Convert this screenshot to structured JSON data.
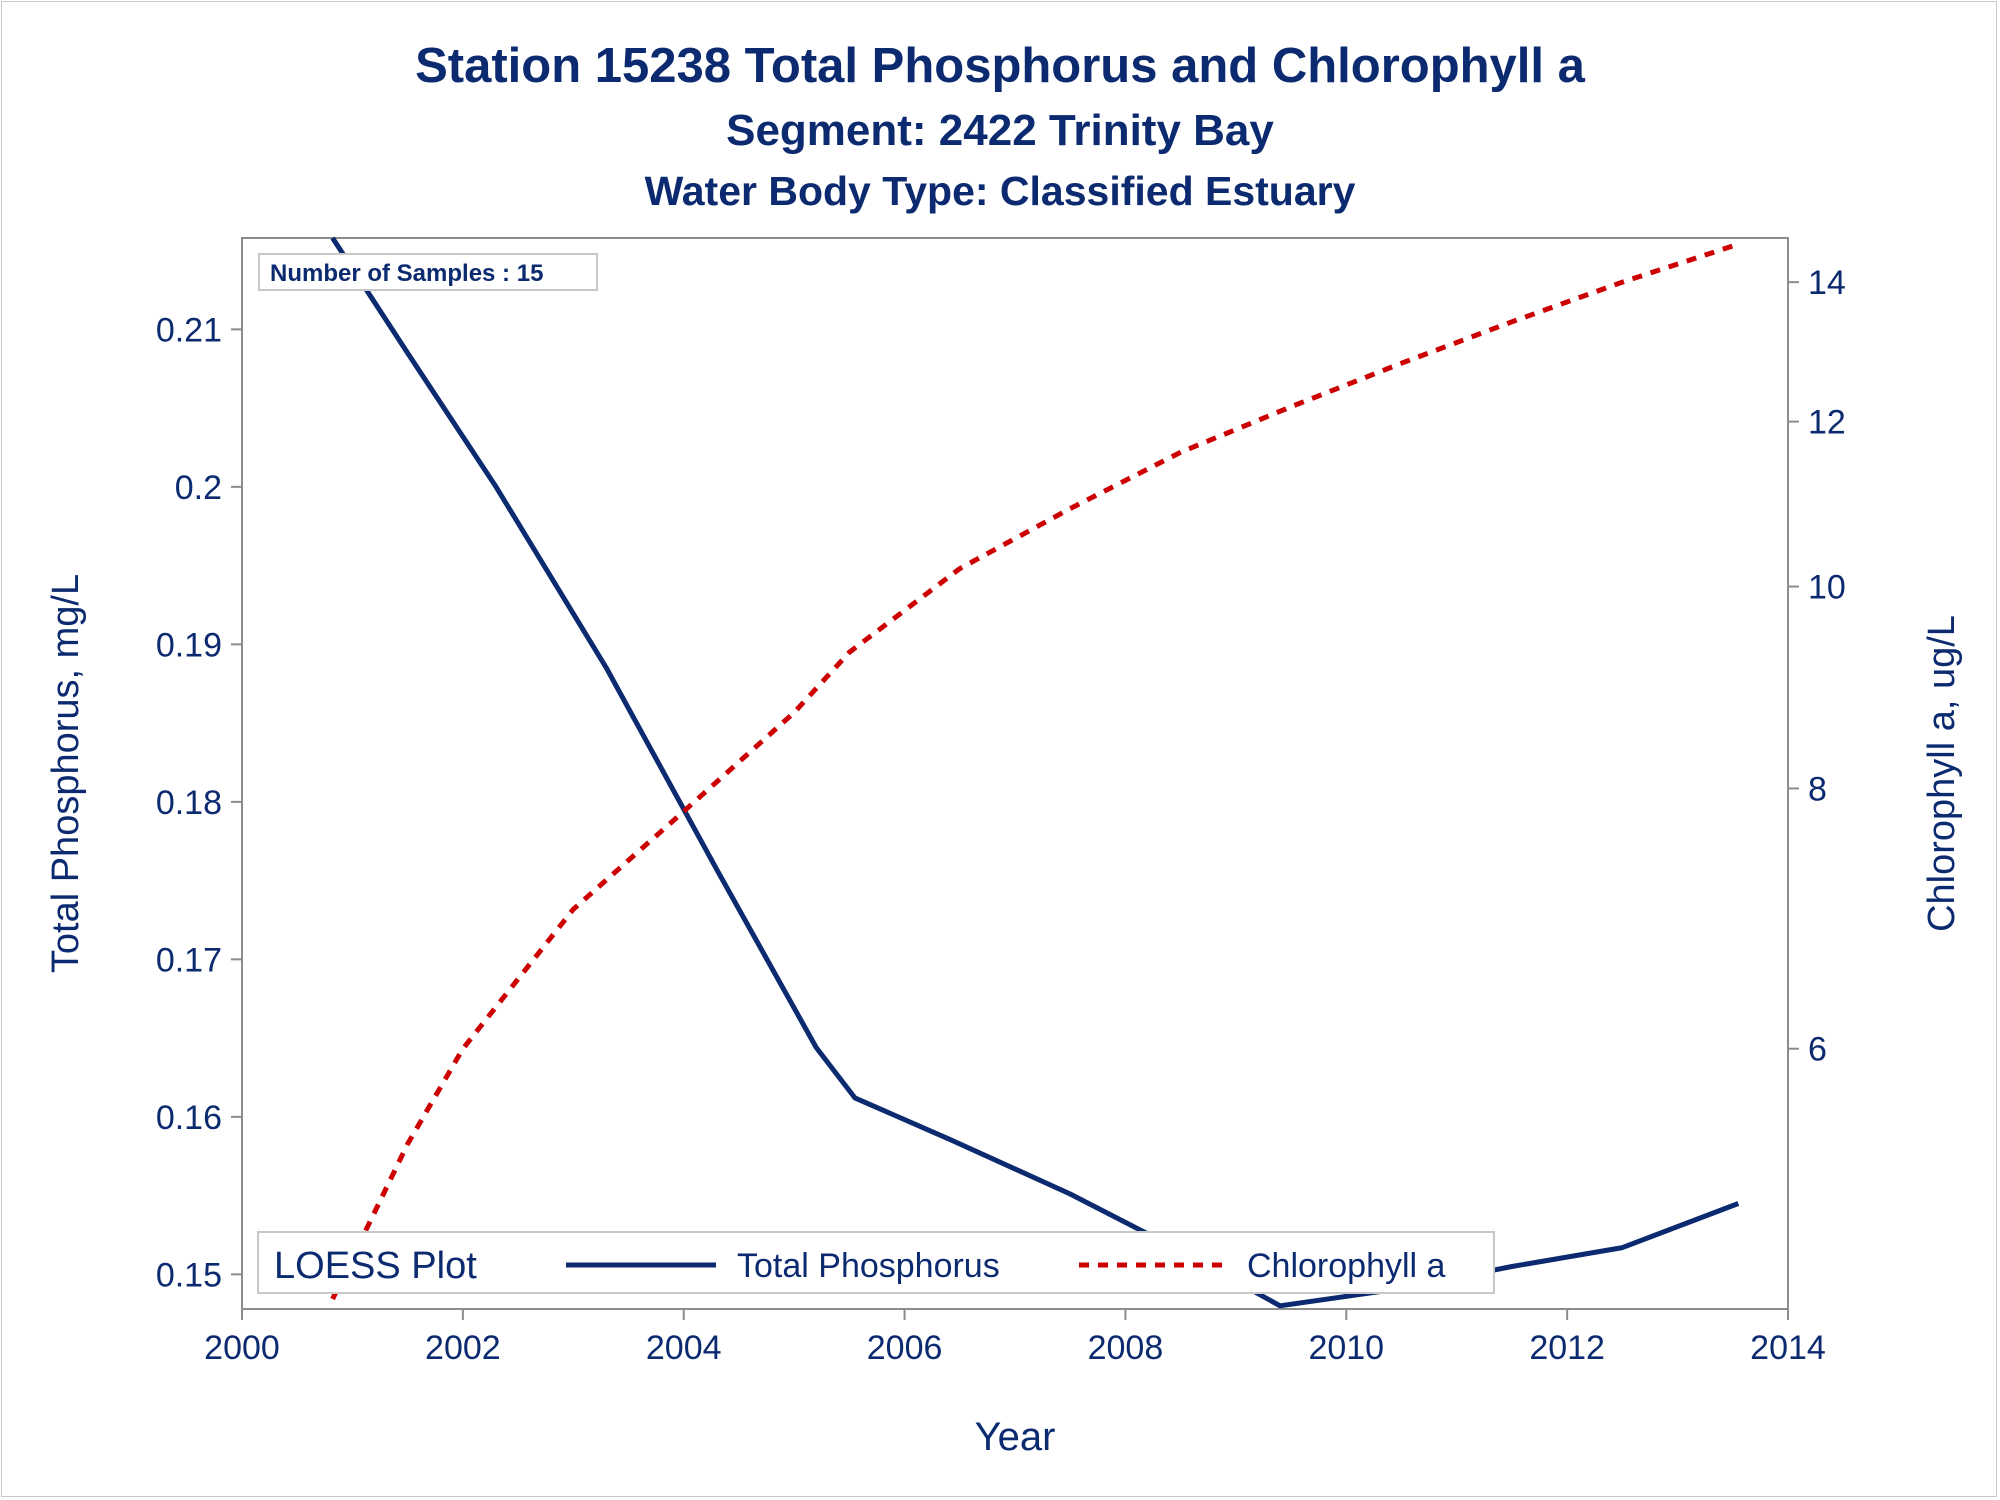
{
  "titles": {
    "line1": "Station 15238    Total Phosphorus and Chlorophyll a",
    "line2": "Segment: 2422  Trinity Bay",
    "line3": "Water Body Type: Classified Estuary"
  },
  "inset_label": "Number of Samples : 15",
  "legend": {
    "title": "LOESS Plot",
    "items": [
      "Total Phosphorus",
      "Chlorophyll a"
    ]
  },
  "colors": {
    "text": "#0b2a6f",
    "phosphorus": "#0b2a6f",
    "chlorophyll": "#cc0000",
    "axis": "#8c8c8c"
  },
  "chart_data": {
    "type": "line",
    "xlabel": "Year",
    "ylabel": "Total Phosphorus, mg/L",
    "y2label": "Chlorophyll a, ug/L",
    "xlim": [
      2000,
      2014
    ],
    "ylim": [
      0.1478,
      0.2158
    ],
    "y2lim": [
      4.5,
      14.7
    ],
    "xticks": [
      2000,
      2002,
      2004,
      2006,
      2008,
      2010,
      2012,
      2014
    ],
    "yticks": [
      0.15,
      0.16,
      0.17,
      0.18,
      0.19,
      0.2,
      0.21
    ],
    "y2ticks": [
      6,
      8,
      10,
      12,
      14
    ],
    "y2_scale": "log",
    "grid": false,
    "legend_position": "bottom-inside",
    "series": [
      {
        "name": "Total Phosphorus",
        "axis": "left",
        "style": "solid",
        "x": [
          2000.82,
          2001.5,
          2002.3,
          2003.3,
          2004.3,
          2005.2,
          2005.55,
          2006.4,
          2007.5,
          2008.5,
          2009.4,
          2010.5,
          2011.5,
          2012.5,
          2013.55
        ],
        "y": [
          0.2158,
          0.2085,
          0.2,
          0.1885,
          0.1757,
          0.1644,
          0.1612,
          0.1586,
          0.1551,
          0.1515,
          0.148,
          0.1491,
          0.1505,
          0.1517,
          0.1545
        ]
      },
      {
        "name": "Chlorophyll a",
        "axis": "right",
        "style": "dashed",
        "x": [
          2000.82,
          2001.5,
          2002.0,
          2003.0,
          2004.0,
          2005.0,
          2005.5,
          2006.5,
          2007.5,
          2008.5,
          2009.5,
          2010.5,
          2011.5,
          2012.5,
          2013.55
        ],
        "y": [
          4.55,
          5.4,
          6.0,
          7.0,
          7.8,
          8.7,
          9.3,
          10.2,
          10.9,
          11.6,
          12.2,
          12.8,
          13.4,
          14.0,
          14.6
        ]
      }
    ]
  }
}
